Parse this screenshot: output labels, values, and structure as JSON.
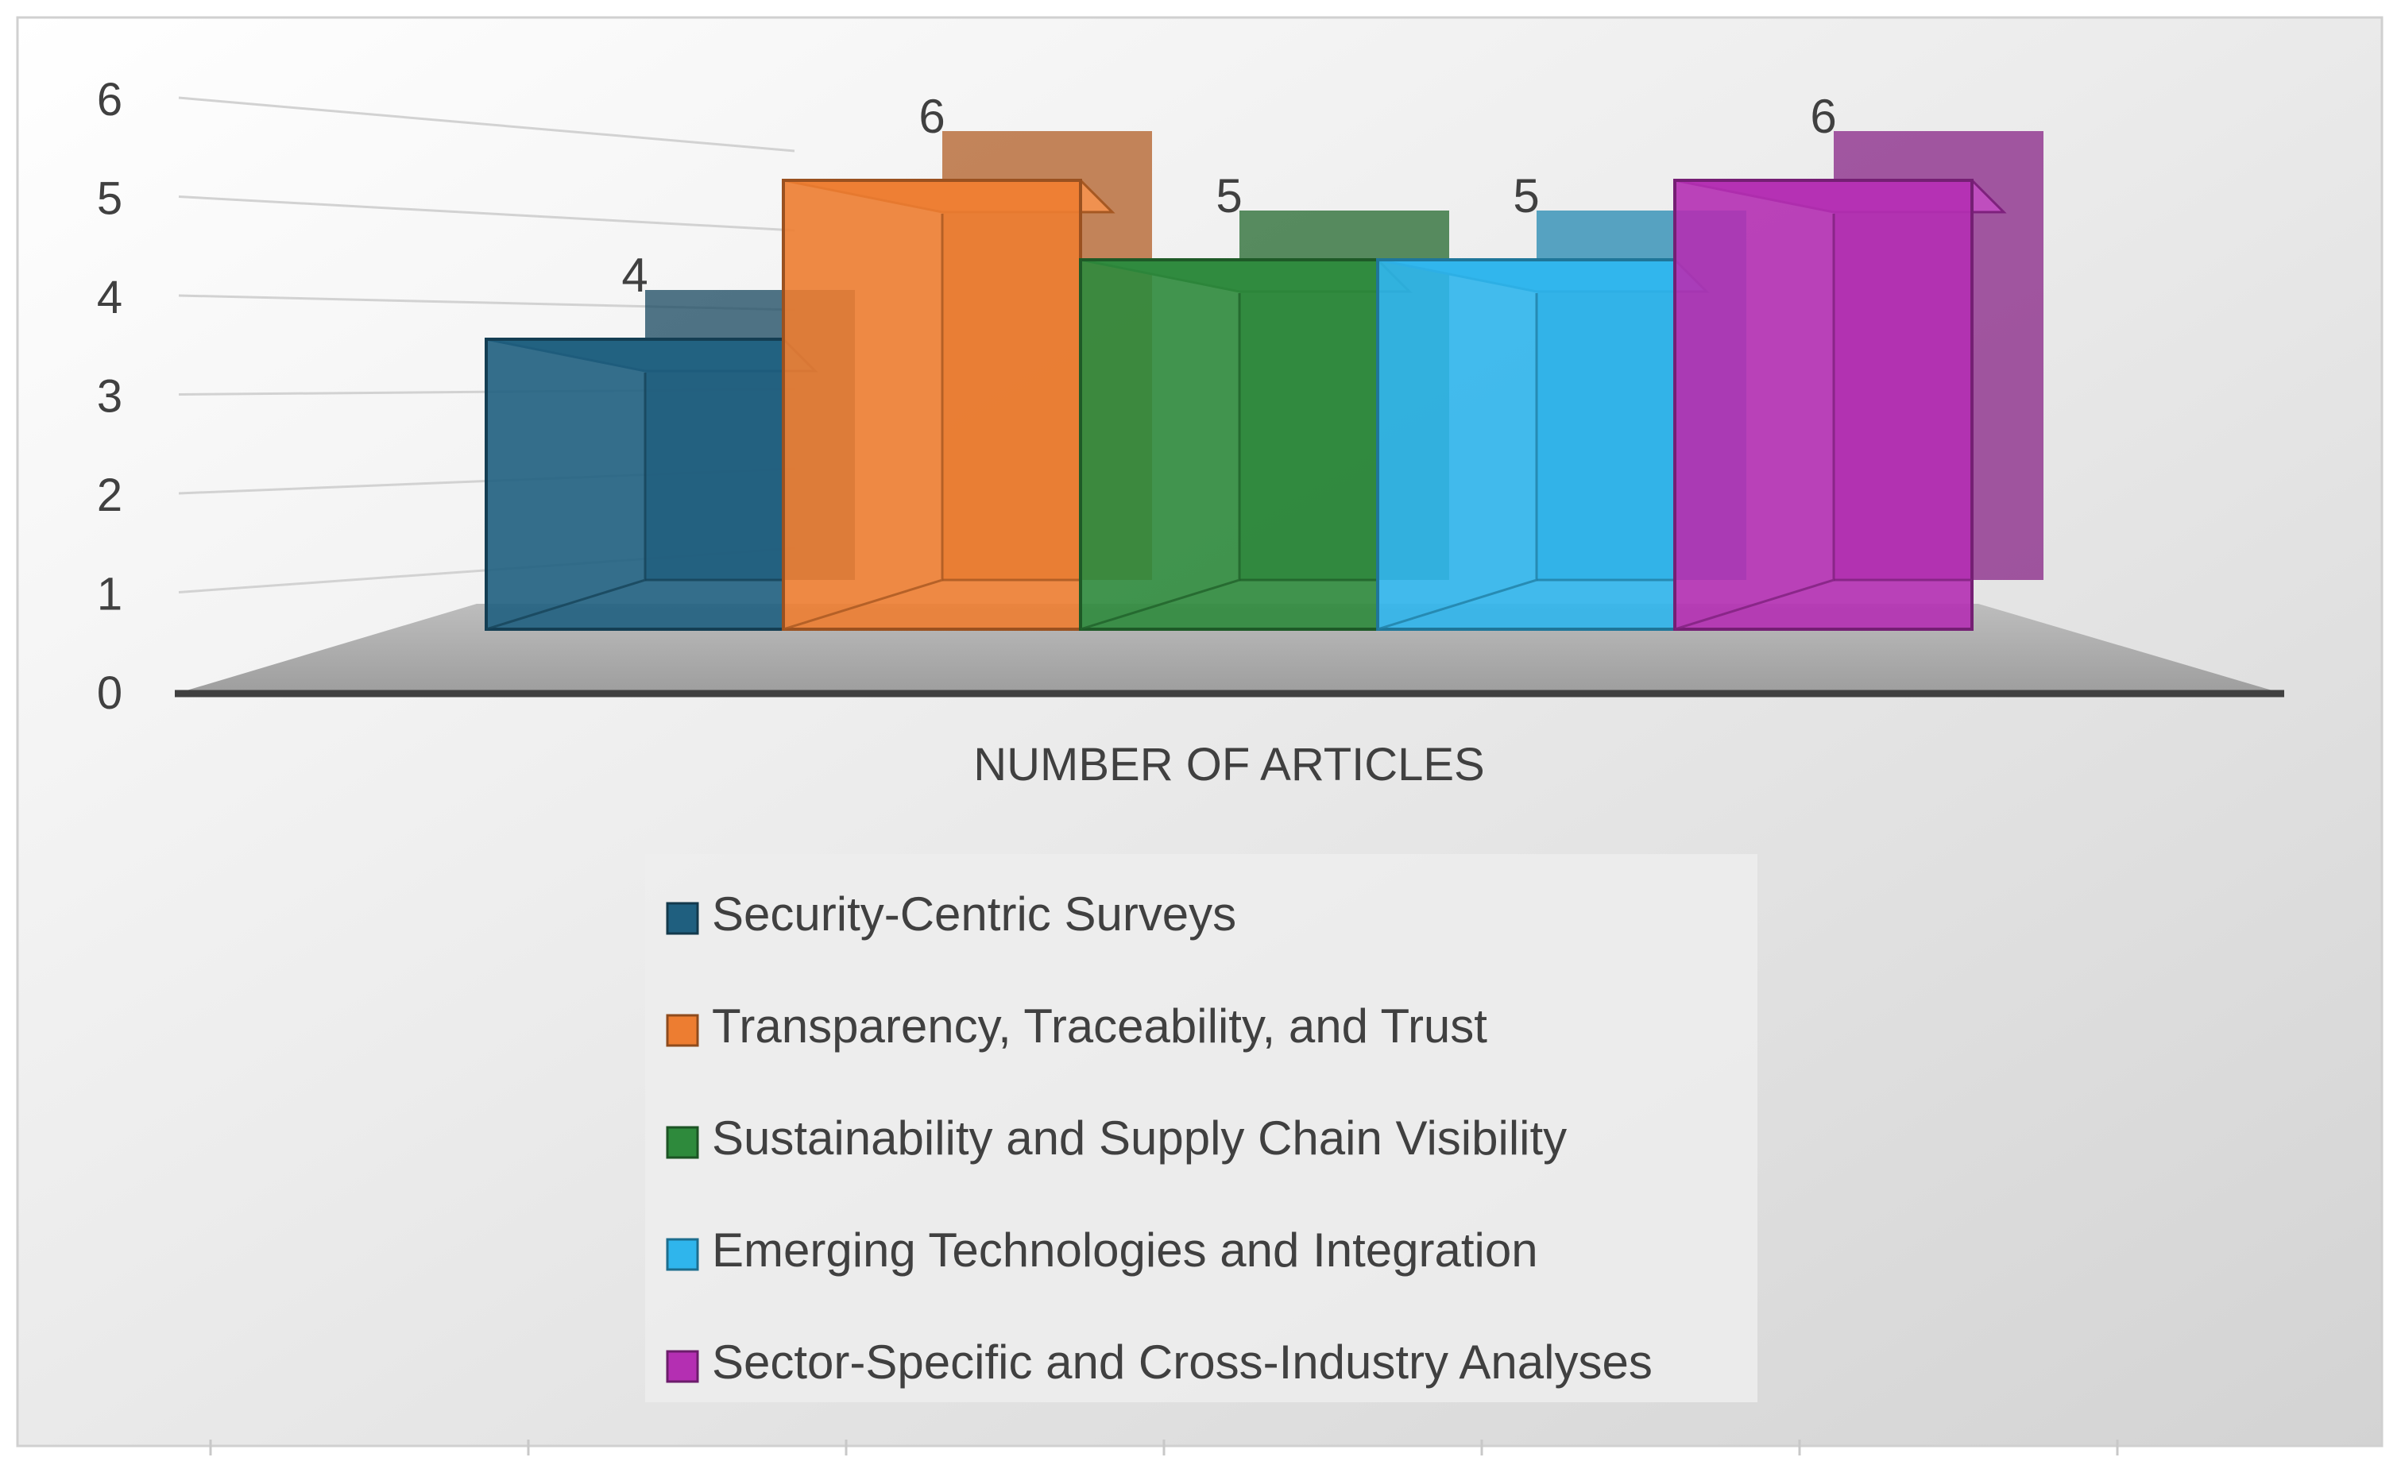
{
  "chart_data": {
    "type": "bar",
    "variant": "3d-clustered-column",
    "categories": [
      "NUMBER OF ARTICLES"
    ],
    "series": [
      {
        "name": "Security-Centric Surveys",
        "values": [
          4
        ],
        "color": "#1f5f7f"
      },
      {
        "name": "Transparency, Traceability, and Trust",
        "values": [
          6
        ],
        "color": "#ed7d31"
      },
      {
        "name": "Sustainability and Supply Chain Visibility",
        "values": [
          5
        ],
        "color": "#2e8a3c"
      },
      {
        "name": "Emerging Technologies and Integration",
        "values": [
          5
        ],
        "color": "#2fb5ec"
      },
      {
        "name": "Sector-Specific and Cross-Industry Analyses",
        "values": [
          6
        ],
        "color": "#b42fb2"
      }
    ],
    "yticks": [
      "0",
      "1",
      "2",
      "3",
      "4",
      "5",
      "6"
    ],
    "ylim": [
      0,
      6
    ],
    "data_labels": true,
    "legend_position": "bottom",
    "grid": true
  }
}
